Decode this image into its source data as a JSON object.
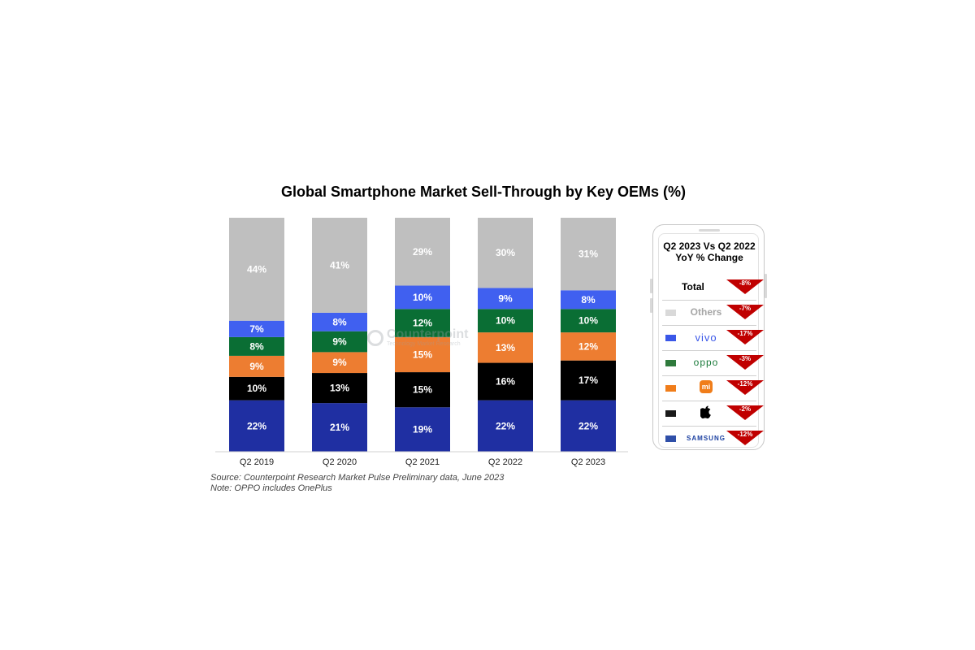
{
  "chart_data": {
    "type": "bar",
    "stacked": true,
    "title": "Global Smartphone Market Sell-Through by Key OEMs (%)",
    "categories": [
      "Q2 2019",
      "Q2 2020",
      "Q2 2021",
      "Q2 2022",
      "Q2 2023"
    ],
    "ylim": [
      0,
      100
    ],
    "grid": false,
    "series": [
      {
        "key": "samsung",
        "color": "#1f2fa2",
        "values": [
          22,
          21,
          19,
          22,
          22
        ]
      },
      {
        "key": "apple",
        "color": "#000000",
        "values": [
          10,
          13,
          15,
          16,
          17
        ]
      },
      {
        "key": "xiaomi",
        "color": "#ed7d31",
        "values": [
          9,
          9,
          15,
          13,
          12
        ]
      },
      {
        "key": "oppo",
        "color": "#0a6e34",
        "values": [
          8,
          9,
          12,
          10,
          10
        ]
      },
      {
        "key": "vivo",
        "color": "#4060f0",
        "values": [
          7,
          8,
          10,
          9,
          8
        ]
      },
      {
        "key": "others",
        "color": "#bfbfbf",
        "values": [
          44,
          41,
          29,
          30,
          31
        ]
      }
    ],
    "data_labels": [
      [
        "22%",
        "21%",
        "19%",
        "22%",
        "22%"
      ],
      [
        "10%",
        "13%",
        "15%",
        "16%",
        "17%"
      ],
      [
        "9%",
        "9%",
        "15%",
        "13%",
        "12%"
      ],
      [
        "8%",
        "9%",
        "12%",
        "10%",
        "10%"
      ],
      [
        "7%",
        "8%",
        "10%",
        "9%",
        "8%"
      ],
      [
        "44%",
        "41%",
        "29%",
        "30%",
        "31%"
      ]
    ]
  },
  "watermark": {
    "name": "Counterpoint",
    "tagline": "Technology Market Research"
  },
  "notes": {
    "source": "Source: Counterpoint Research Market Pulse Preliminary data, June 2023",
    "note": "Note: OPPO includes OnePlus"
  },
  "yoy_panel": {
    "title_line1": "Q2 2023 Vs Q2 2022",
    "title_line2": "YoY % Change",
    "arrow_color": "#c00000",
    "rows": [
      {
        "key": "total",
        "name": "Total",
        "swatch": "",
        "change": "-8%"
      },
      {
        "key": "others",
        "name": "Others",
        "swatch": "#d9d9d9",
        "change": "-7%"
      },
      {
        "key": "vivo",
        "name": "vivo",
        "swatch": "#3a57e8",
        "change": "-17%"
      },
      {
        "key": "oppo",
        "name": "oppo",
        "swatch": "#2f7a3c",
        "change": "-3%"
      },
      {
        "key": "xiaomi",
        "name": "mi",
        "swatch": "#f07d1a",
        "change": "-12%",
        "logo_icon": "xiaomi-logo-icon"
      },
      {
        "key": "apple",
        "name": "",
        "swatch": "#1a1a1a",
        "change": "-2%",
        "logo_icon": "apple-logo-icon"
      },
      {
        "key": "samsung",
        "name": "SAMSUNG",
        "swatch": "#2f4fa8",
        "change": "-12%"
      }
    ]
  }
}
